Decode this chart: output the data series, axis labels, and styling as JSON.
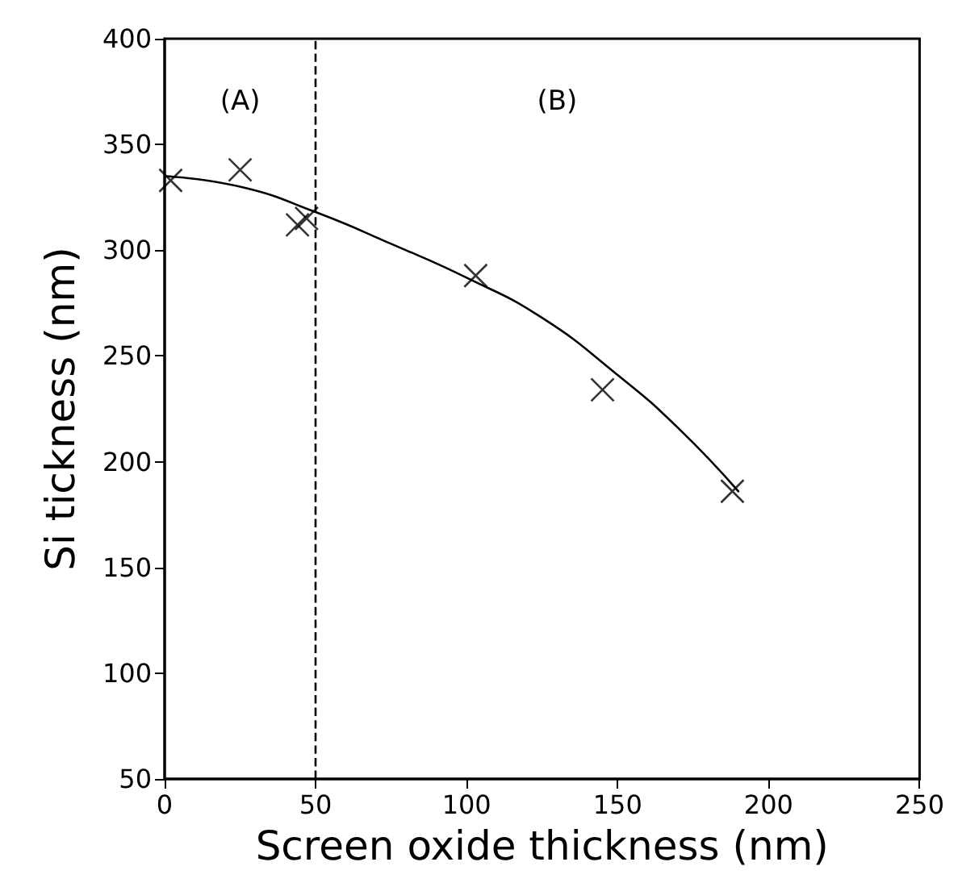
{
  "chart_data": {
    "type": "scatter",
    "xlabel": "Screen oxide thickness (nm)",
    "ylabel": "Si tickness (nm)",
    "xlim": [
      0,
      250
    ],
    "xticks": [
      0,
      50,
      100,
      150,
      200,
      250
    ],
    "ylim": [
      50,
      400
    ],
    "yticks": [
      50,
      100,
      150,
      200,
      250,
      300,
      350,
      400
    ],
    "grid": false,
    "marker": "cross",
    "series": [
      {
        "color": "#000000",
        "x": [
          2,
          25,
          44,
          47,
          103,
          145,
          188
        ],
        "values": [
          333,
          338,
          312,
          315,
          288,
          234,
          186
        ]
      },
      {
        "type": "line",
        "color": "#000000",
        "marker": "none",
        "line_style": "solid",
        "x": [
          0,
          25,
          50,
          75,
          100,
          125,
          150,
          170,
          190
        ],
        "values": [
          335,
          330,
          318,
          303,
          287,
          268,
          241,
          216,
          186
        ]
      }
    ],
    "ref_lines": [
      {
        "axis": "x",
        "value": 50,
        "color": "#000000",
        "line_style": "dashed"
      }
    ],
    "annotations": [
      "(A)",
      "(B)"
    ]
  }
}
